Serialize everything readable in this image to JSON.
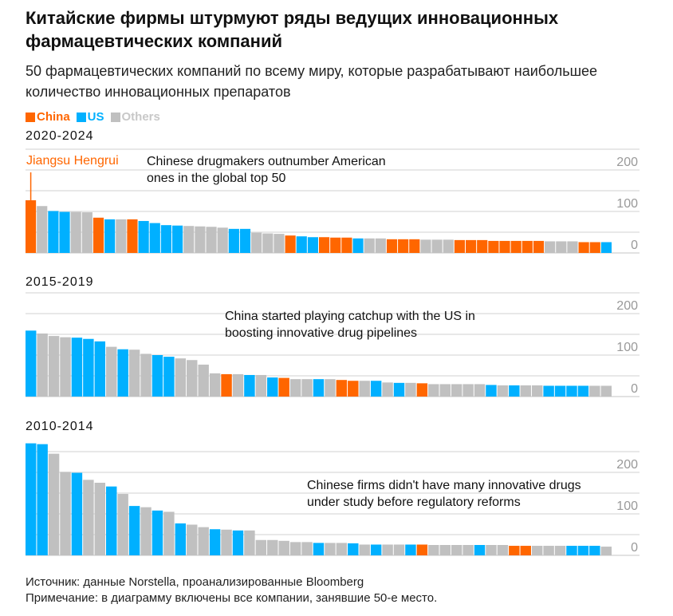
{
  "header": {
    "title": "Китайские фирмы штурмуют ряды ведущих инновационных фармацевтических компаний",
    "subtitle": "50 фармацевтических компаний по всему миру, которые разрабатывают наибольшее количество инновационных препаратов"
  },
  "legend": [
    {
      "label": "China",
      "color": "#ff6600"
    },
    {
      "label": "US",
      "color": "#00b0ff"
    },
    {
      "label": "Others",
      "color": "#c0c0c0"
    }
  ],
  "colors": {
    "China": "#ff6600",
    "US": "#00b0ff",
    "Others": "#c0c0c0",
    "grid": "#e0e0e0",
    "tick": "#999999"
  },
  "chart_data": [
    {
      "type": "bar",
      "title": "2020-2024",
      "annotation": "Chinese drugmakers outnumber American ones in the global top 50",
      "callout": "Jiangsu Hengrui",
      "ylim": [
        0,
        250
      ],
      "yticks": [
        0,
        100,
        200
      ],
      "grid": true,
      "values": [
        127,
        113,
        101,
        99,
        99,
        98,
        85,
        81,
        81,
        81,
        77,
        72,
        67,
        66,
        65,
        64,
        63,
        61,
        58,
        58,
        49,
        47,
        46,
        42,
        40,
        38,
        38,
        37,
        37,
        35,
        35,
        35,
        33,
        33,
        33,
        32,
        32,
        32,
        31,
        31,
        31,
        29,
        29,
        29,
        29,
        29,
        28,
        28,
        28,
        26,
        26,
        26
      ],
      "groups": [
        "China",
        "Others",
        "US",
        "US",
        "Others",
        "Others",
        "China",
        "US",
        "Others",
        "China",
        "US",
        "US",
        "US",
        "US",
        "Others",
        "Others",
        "Others",
        "Others",
        "US",
        "US",
        "Others",
        "Others",
        "Others",
        "China",
        "US",
        "US",
        "China",
        "China",
        "China",
        "US",
        "Others",
        "Others",
        "China",
        "China",
        "China",
        "Others",
        "Others",
        "Others",
        "China",
        "China",
        "China",
        "China",
        "China",
        "China",
        "China",
        "China",
        "Others",
        "Others",
        "Others",
        "China",
        "China",
        "US"
      ]
    },
    {
      "type": "bar",
      "title": "2015-2019",
      "annotation": "China started playing catchup with the US in boosting innovative drug pipelines",
      "ylim": [
        0,
        250
      ],
      "yticks": [
        0,
        100,
        200
      ],
      "grid": true,
      "values": [
        159,
        152,
        146,
        143,
        142,
        139,
        133,
        120,
        114,
        113,
        103,
        100,
        96,
        92,
        88,
        77,
        56,
        54,
        54,
        52,
        52,
        46,
        45,
        42,
        42,
        42,
        42,
        40,
        38,
        38,
        38,
        34,
        33,
        33,
        32,
        30,
        30,
        30,
        30,
        30,
        28,
        27,
        27,
        27,
        27,
        26,
        26,
        26,
        26,
        26,
        26
      ],
      "groups": [
        "US",
        "Others",
        "Others",
        "Others",
        "US",
        "US",
        "US",
        "Others",
        "US",
        "Others",
        "Others",
        "US",
        "US",
        "Others",
        "Others",
        "Others",
        "Others",
        "China",
        "Others",
        "US",
        "Others",
        "US",
        "China",
        "Others",
        "Others",
        "US",
        "Others",
        "China",
        "China",
        "Others",
        "US",
        "Others",
        "US",
        "Others",
        "China",
        "Others",
        "Others",
        "Others",
        "Others",
        "Others",
        "US",
        "Others",
        "US",
        "Others",
        "Others",
        "US",
        "US",
        "US",
        "US",
        "Others",
        "Others"
      ]
    },
    {
      "type": "bar",
      "title": "2010-2014",
      "annotation": "Chinese firms didn't have many innovative drugs under study before regulatory reforms",
      "ylim": [
        0,
        250
      ],
      "yticks": [
        0,
        100,
        200
      ],
      "grid": true,
      "values": [
        270,
        268,
        245,
        201,
        199,
        182,
        175,
        166,
        148,
        119,
        116,
        108,
        105,
        77,
        74,
        68,
        63,
        62,
        60,
        60,
        37,
        37,
        35,
        32,
        32,
        30,
        30,
        30,
        29,
        26,
        26,
        26,
        26,
        26,
        26,
        25,
        25,
        25,
        25,
        25,
        25,
        25,
        23,
        23,
        23,
        23,
        23,
        23,
        23,
        23,
        21
      ],
      "groups": [
        "US",
        "US",
        "Others",
        "Others",
        "US",
        "Others",
        "Others",
        "US",
        "Others",
        "US",
        "Others",
        "US",
        "Others",
        "US",
        "Others",
        "Others",
        "US",
        "Others",
        "US",
        "Others",
        "Others",
        "Others",
        "Others",
        "Others",
        "Others",
        "US",
        "Others",
        "Others",
        "US",
        "Others",
        "US",
        "Others",
        "Others",
        "US",
        "China",
        "Others",
        "Others",
        "Others",
        "Others",
        "US",
        "Others",
        "Others",
        "China",
        "China",
        "Others",
        "Others",
        "Others",
        "US",
        "US",
        "US",
        "Others"
      ]
    }
  ],
  "footer": {
    "source": "Источник: данные Norstella, проанализированные Bloomberg",
    "note": "Примечание: в диаграмму включены все компании, занявшие 50-е место."
  }
}
